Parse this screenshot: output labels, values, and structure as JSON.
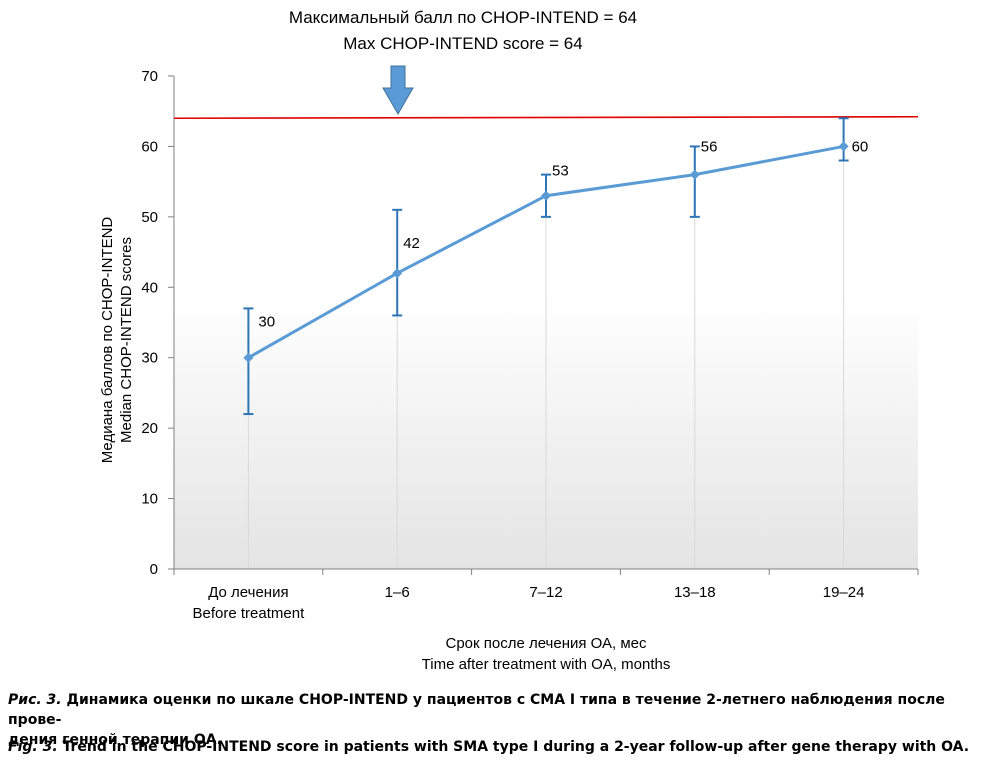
{
  "annotation": {
    "line1": "Максимальный балл по CHOP-INTEND = 64",
    "line2": "Max CHOP-INTEND score = 64"
  },
  "axes": {
    "ylabel_ru": "Медиана баллов по CHOP-INTEND",
    "ylabel_en": "Median CHOP-INTEND scores",
    "xlabel_ru": "Срок после лечения ОА, мес",
    "xlabel_en": "Time after treatment with OA, months"
  },
  "colors": {
    "line": "#5b9bd5",
    "errorbar": "#2e75b6",
    "maxline": "#e00000",
    "arrow": "#5b9bd5"
  },
  "caption": {
    "ru_lead": "Рис. 3.",
    "ru_text": " Динамика оценки по шкале CHOP-INTEND у пациентов с СМА I типа в течение 2-летнего наблюдения после прове-",
    "ru_text2": "дения генной терапии ОА.",
    "en_lead": "Fig. 3.",
    "en_text": " Trend in the CHOP-INTEND score in patients with SMA type I during a 2-year follow-up after gene therapy with OA."
  },
  "chart_data": {
    "type": "line",
    "categories": [
      "До лечения\nBefore treatment",
      "1–6",
      "7–12",
      "13–18",
      "19–24"
    ],
    "values": [
      30,
      42,
      53,
      56,
      60
    ],
    "error_low": [
      22,
      36,
      50,
      50,
      58
    ],
    "error_high": [
      37,
      51,
      56,
      60,
      64
    ],
    "data_labels": [
      "30",
      "42",
      "53",
      "56",
      "60"
    ],
    "reference_line": {
      "value": 64
    },
    "ylim": [
      0,
      70
    ],
    "yticks": [
      0,
      10,
      20,
      30,
      40,
      50,
      60,
      70
    ],
    "ytick_labels": [
      "0",
      "10",
      "20",
      "30",
      "40",
      "50",
      "60",
      "70"
    ],
    "grid": false
  }
}
